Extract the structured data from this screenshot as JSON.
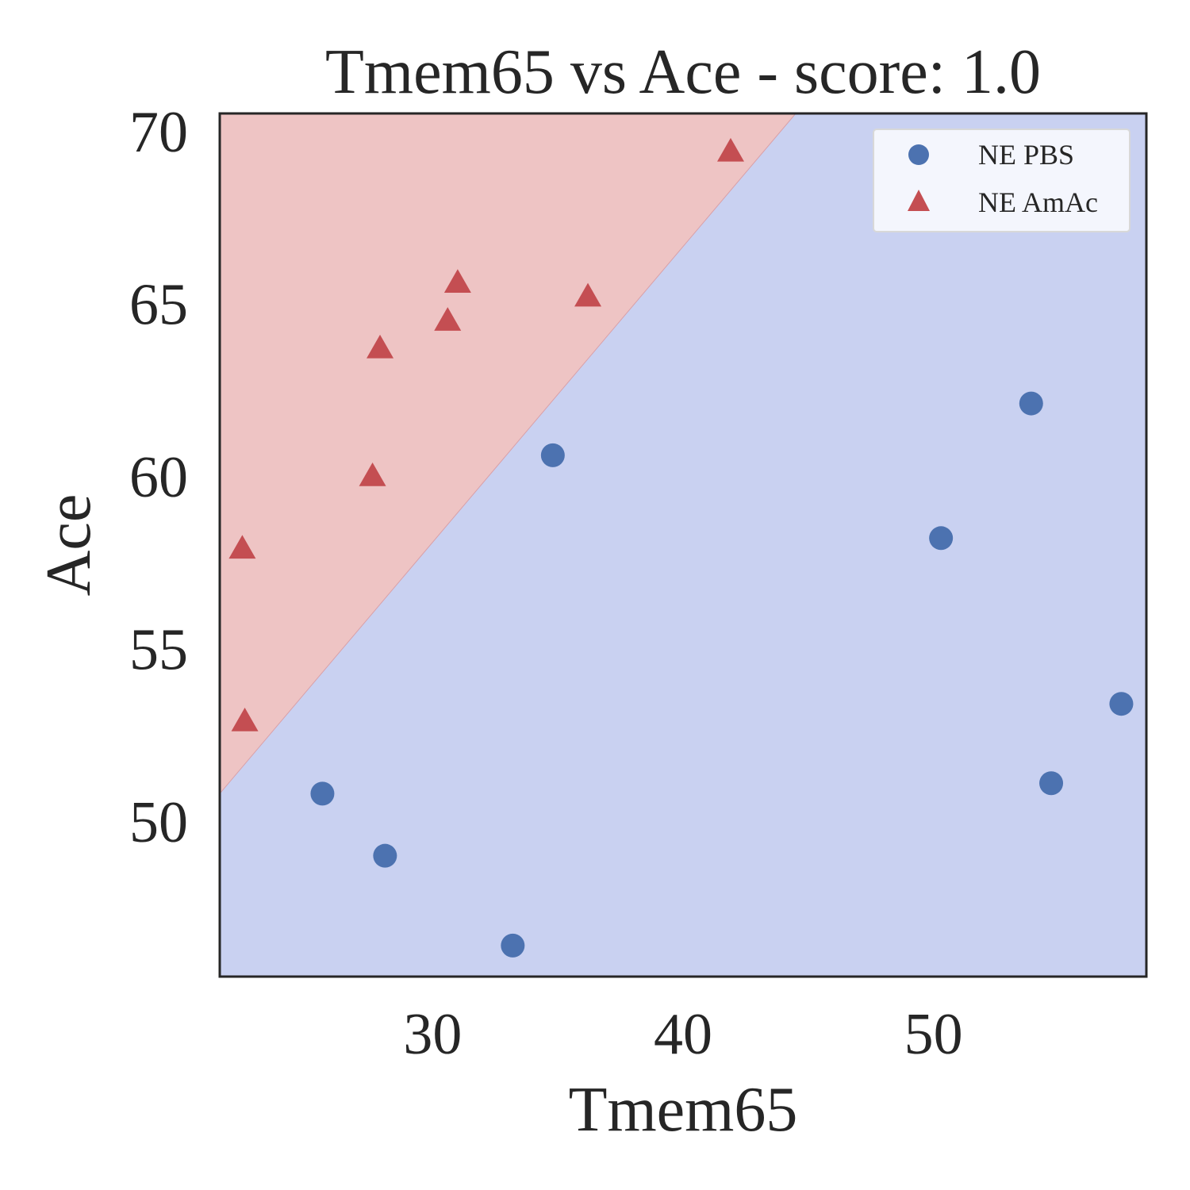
{
  "chart_data": {
    "type": "scatter",
    "title": "Tmem65 vs Ace - score: 1.0",
    "xlabel": "Tmem65",
    "ylabel": "Ace",
    "xlim": [
      21.5,
      58.5
    ],
    "ylim": [
      45.5,
      70.5
    ],
    "xticks": [
      30,
      40,
      50
    ],
    "yticks": [
      50,
      55,
      60,
      65,
      70
    ],
    "grid": false,
    "legend_position": "top-right",
    "decision_boundary": {
      "line": [
        [
          21.5,
          50.8
        ],
        [
          44.5,
          70.5
        ]
      ],
      "region_above": "NE AmAc",
      "region_below": "NE PBS"
    },
    "colors": {
      "region_above": "#eec4c4",
      "region_below": "#c9d1f1",
      "pbs_marker": "#4c72b0",
      "amac_marker": "#c44e52",
      "axis": "#262626"
    },
    "series": [
      {
        "name": "NE PBS",
        "marker": "circle",
        "points": [
          {
            "x": 25.6,
            "y": 50.8
          },
          {
            "x": 28.1,
            "y": 49.0
          },
          {
            "x": 33.2,
            "y": 46.4
          },
          {
            "x": 34.8,
            "y": 60.6
          },
          {
            "x": 50.3,
            "y": 58.2
          },
          {
            "x": 53.9,
            "y": 62.1
          },
          {
            "x": 54.7,
            "y": 51.1
          },
          {
            "x": 57.5,
            "y": 53.4
          }
        ]
      },
      {
        "name": "NE AmAc",
        "marker": "triangle",
        "points": [
          {
            "x": 22.4,
            "y": 57.9
          },
          {
            "x": 22.5,
            "y": 52.9
          },
          {
            "x": 27.6,
            "y": 60.0
          },
          {
            "x": 27.9,
            "y": 63.7
          },
          {
            "x": 30.6,
            "y": 64.5
          },
          {
            "x": 31.0,
            "y": 65.6
          },
          {
            "x": 36.2,
            "y": 65.2
          },
          {
            "x": 41.9,
            "y": 69.4
          }
        ]
      }
    ]
  }
}
